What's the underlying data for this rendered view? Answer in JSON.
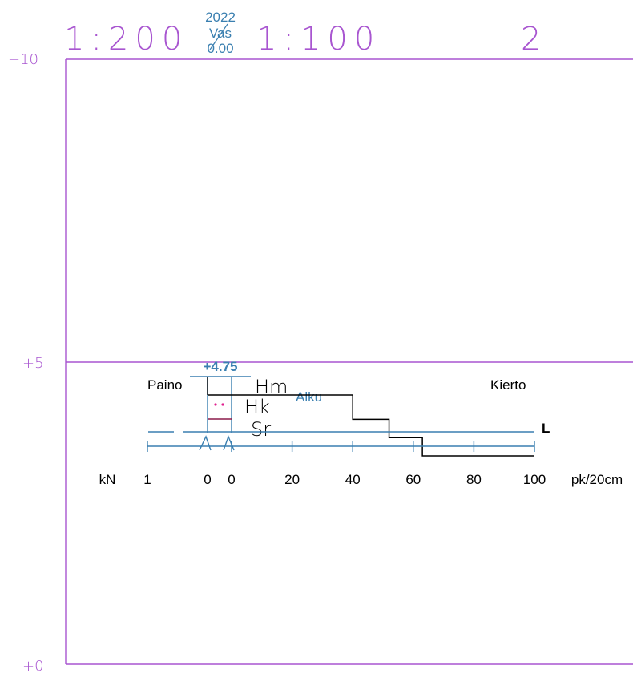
{
  "header": {
    "scale_left": "1:200",
    "scale_right": "1:100",
    "sheet_number": "2",
    "year": "2022",
    "side": "Vas",
    "offset": "0.00"
  },
  "elevations": {
    "top": "+10",
    "middle": "+5",
    "bottom": "+0"
  },
  "sounding": {
    "start_level": "+4.75",
    "weight_label": "Paino",
    "rotation_label": "Kierto",
    "start_label": "Alku",
    "end_label": "L",
    "layers": [
      "Hm",
      "Hk",
      "Sr"
    ],
    "penetration_profile": [
      {
        "depth_from": 4.75,
        "depth_to": 4.35,
        "value": 40
      },
      {
        "depth_from": 4.35,
        "depth_to": 4.05,
        "value": 52
      },
      {
        "depth_from": 4.05,
        "depth_to": 3.75,
        "value": 63
      },
      {
        "depth_from": 3.75,
        "depth_to": 3.75,
        "value": 100
      }
    ],
    "unit_force": "kN",
    "unit_rate": "pk/20cm",
    "axis_labels": [
      "1",
      "0",
      "0",
      "20",
      "40",
      "60",
      "80",
      "100"
    ]
  },
  "colors": {
    "frame": "#a855d0",
    "annotation": "#3a7fb0",
    "profile": "#000000",
    "marker": "#e0208f",
    "layer_line": "#8b1a4a"
  }
}
